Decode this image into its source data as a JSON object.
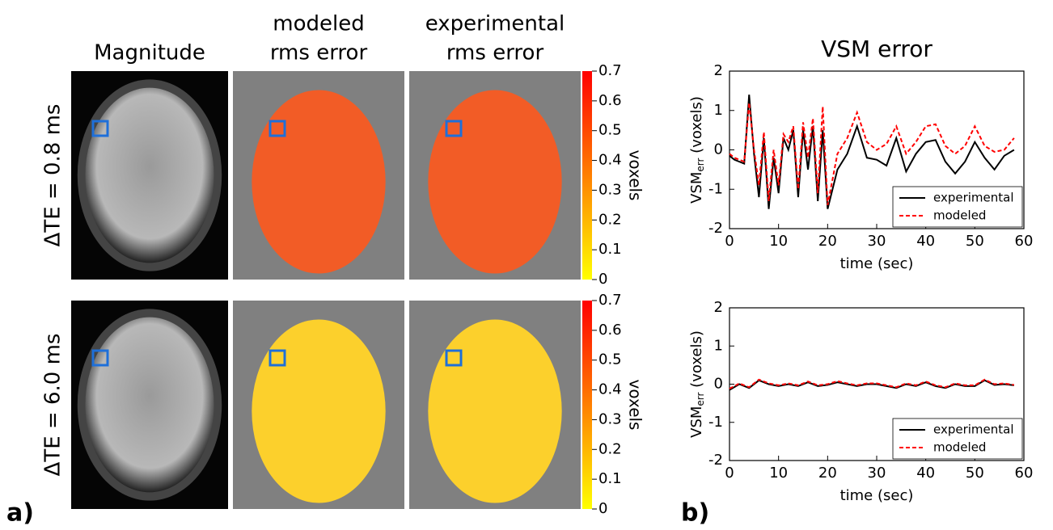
{
  "panel_labels": [
    "a)",
    "b)"
  ],
  "maps": {
    "column_titles": [
      [
        "Magnitude"
      ],
      [
        "modeled",
        "rms error"
      ],
      [
        "experimental",
        "rms error"
      ]
    ],
    "row_labels": [
      "ΔTE = 0.8 ms",
      "ΔTE = 6.0 ms"
    ],
    "row_colors": [
      "#f25c26",
      "#fcd02c"
    ],
    "colorbar": {
      "label": "voxels",
      "lim": [
        0,
        0.7
      ],
      "ticks": [
        0,
        0.1,
        0.2,
        0.3,
        0.4,
        0.5,
        0.6,
        0.7
      ],
      "colors": [
        "#ffff00",
        "#ff0000"
      ]
    }
  },
  "chart_data": [
    {
      "type": "line",
      "title": "VSM error",
      "ylabel": {
        "main": "VSM",
        "sub": "err",
        "rest": " (voxels)"
      },
      "xlabel": "time (sec)",
      "x": [
        0,
        1,
        2,
        3,
        4,
        5,
        6,
        7,
        8,
        9,
        10,
        11,
        12,
        13,
        14,
        15,
        16,
        17,
        18,
        19,
        20,
        22,
        24,
        26,
        28,
        30,
        32,
        34,
        36,
        38,
        40,
        42,
        44,
        46,
        48,
        50,
        52,
        54,
        56,
        58
      ],
      "series": [
        {
          "name": "experimental",
          "color": "#000000",
          "linestyle": "solid",
          "values": [
            -0.15,
            -0.25,
            -0.3,
            -0.35,
            1.4,
            -0.1,
            -1.2,
            0.3,
            -1.5,
            -0.2,
            -1.1,
            0.3,
            0,
            0.5,
            -1.2,
            0.5,
            -0.5,
            0.6,
            -1.3,
            0.5,
            -1.5,
            -0.5,
            -0.1,
            0.6,
            -0.2,
            -0.25,
            -0.4,
            0.3,
            -0.55,
            -0.1,
            0.2,
            0.25,
            -0.3,
            -0.6,
            -0.3,
            0.2,
            -0.2,
            -0.5,
            -0.15,
            0
          ]
        },
        {
          "name": "modeled",
          "color": "#ff0000",
          "linestyle": "dashed",
          "values": [
            -0.1,
            -0.2,
            -0.25,
            -0.3,
            1.2,
            0,
            -0.9,
            0.45,
            -1.3,
            0,
            -0.9,
            0.4,
            0.2,
            0.6,
            -1.0,
            0.7,
            -0.2,
            0.8,
            -1.1,
            1.1,
            -1.4,
            -0.1,
            0.3,
            0.95,
            0.2,
            0,
            0.15,
            0.6,
            -0.1,
            0.2,
            0.6,
            0.65,
            0.1,
            -0.1,
            0.1,
            0.6,
            0.1,
            -0.05,
            0,
            0.3
          ]
        }
      ],
      "xlim": [
        0,
        60
      ],
      "xticks": [
        0,
        10,
        20,
        30,
        40,
        50,
        60
      ],
      "ylim": [
        -2,
        2
      ],
      "yticks": [
        -2,
        -1,
        0,
        1,
        2
      ],
      "legend": "lower right"
    },
    {
      "type": "line",
      "ylabel": {
        "main": "VSM",
        "sub": "err",
        "rest": " (voxels)"
      },
      "xlabel": "time (sec)",
      "x": [
        0,
        2,
        4,
        6,
        8,
        10,
        12,
        14,
        16,
        18,
        20,
        22,
        24,
        26,
        28,
        30,
        32,
        34,
        36,
        38,
        40,
        42,
        44,
        46,
        48,
        50,
        52,
        54,
        56,
        58
      ],
      "series": [
        {
          "name": "experimental",
          "color": "#000000",
          "linestyle": "solid",
          "values": [
            -0.15,
            0,
            -0.1,
            0.1,
            0,
            -0.05,
            0,
            -0.05,
            0.05,
            -0.05,
            -0.02,
            0.05,
            0,
            -0.05,
            0,
            0,
            -0.05,
            -0.1,
            0,
            -0.05,
            0.05,
            -0.05,
            -0.1,
            0,
            -0.05,
            -0.05,
            0.1,
            -0.02,
            0,
            -0.03
          ]
        },
        {
          "name": "modeled",
          "color": "#ff0000",
          "linestyle": "dashed",
          "values": [
            -0.12,
            0.02,
            -0.08,
            0.12,
            0.02,
            -0.03,
            0.02,
            -0.03,
            0.07,
            -0.03,
            0,
            0.08,
            0.02,
            -0.03,
            0.02,
            0.02,
            -0.03,
            -0.08,
            0.02,
            -0.03,
            0.07,
            -0.03,
            -0.08,
            0.02,
            -0.03,
            -0.03,
            0.12,
            0,
            0.02,
            -0.02
          ]
        }
      ],
      "xlim": [
        0,
        60
      ],
      "xticks": [
        0,
        10,
        20,
        30,
        40,
        50,
        60
      ],
      "ylim": [
        -2,
        2
      ],
      "yticks": [
        -2,
        -1,
        0,
        1,
        2
      ],
      "legend": "lower right"
    }
  ]
}
